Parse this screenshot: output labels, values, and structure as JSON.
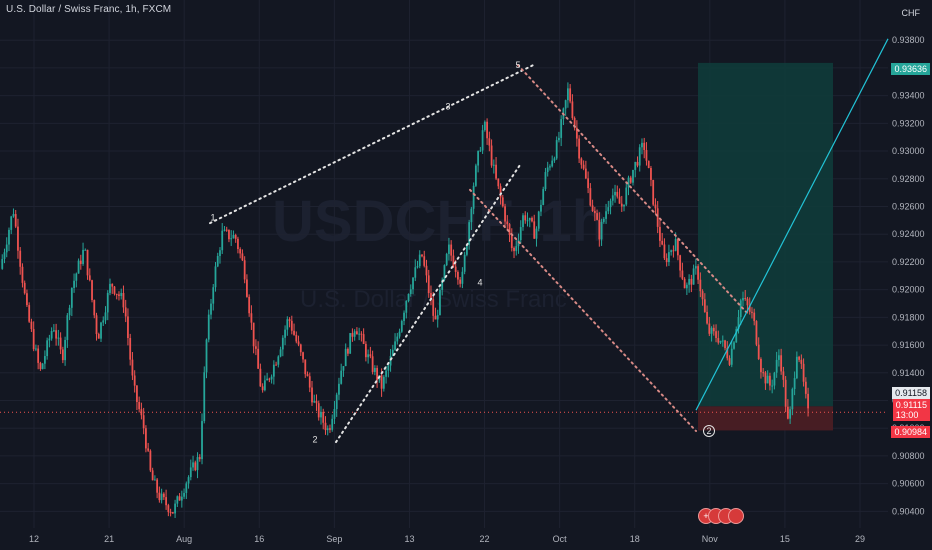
{
  "header": {
    "title": "U.S. Dollar / Swiss Franc, 1h, FXCM",
    "currency": "CHF"
  },
  "watermark": {
    "symbol": "USDCHF, 1h",
    "name": "U.S. Dollar / Swiss Franc"
  },
  "colors": {
    "background": "#131722",
    "up": "#26a69a",
    "down": "#ef5350",
    "grid": "#1e2230",
    "axis_text": "#b2b5be",
    "tp_zone": "#0f3b3a",
    "sl_zone": "#4a1e24",
    "projection": "#22c3d6",
    "annotation": "#e3e3e3",
    "corrective": "#d88a86"
  },
  "chart_data": {
    "type": "candlestick",
    "title": "U.S. Dollar / Swiss Franc, 1h, FXCM",
    "y_axis": {
      "unit": "CHF",
      "range": [
        0.9028,
        0.9409
      ],
      "position": "right",
      "ticks": [
        "0.93800",
        "0.93600",
        "0.93400",
        "0.93200",
        "0.93000",
        "0.92800",
        "0.92600",
        "0.92400",
        "0.92200",
        "0.92000",
        "0.91800",
        "0.91600",
        "0.91400",
        "0.91200",
        "0.91000",
        "0.90800",
        "0.90600",
        "0.90400"
      ]
    },
    "x_axis": {
      "ticks": [
        "12",
        "21",
        "Aug",
        "16",
        "Sep",
        "13",
        "22",
        "Oct",
        "18",
        "Nov",
        "15",
        "29"
      ]
    },
    "grid": true,
    "price_path": [
      {
        "t": 0.0,
        "p": 0.9215
      },
      {
        "t": 0.015,
        "p": 0.9258
      },
      {
        "t": 0.03,
        "p": 0.9185
      },
      {
        "t": 0.045,
        "p": 0.914
      },
      {
        "t": 0.06,
        "p": 0.9175
      },
      {
        "t": 0.07,
        "p": 0.915
      },
      {
        "t": 0.08,
        "p": 0.92
      },
      {
        "t": 0.095,
        "p": 0.923
      },
      {
        "t": 0.11,
        "p": 0.9165
      },
      {
        "t": 0.125,
        "p": 0.9205
      },
      {
        "t": 0.14,
        "p": 0.919
      },
      {
        "t": 0.15,
        "p": 0.913
      },
      {
        "t": 0.162,
        "p": 0.91
      },
      {
        "t": 0.17,
        "p": 0.9065
      },
      {
        "t": 0.18,
        "p": 0.905
      },
      {
        "t": 0.195,
        "p": 0.904
      },
      {
        "t": 0.21,
        "p": 0.9062
      },
      {
        "t": 0.225,
        "p": 0.908
      },
      {
        "t": 0.232,
        "p": 0.916
      },
      {
        "t": 0.24,
        "p": 0.9205
      },
      {
        "t": 0.25,
        "p": 0.924
      },
      {
        "t": 0.265,
        "p": 0.9238
      },
      {
        "t": 0.275,
        "p": 0.9215
      },
      {
        "t": 0.285,
        "p": 0.9165
      },
      {
        "t": 0.295,
        "p": 0.9125
      },
      {
        "t": 0.31,
        "p": 0.9148
      },
      {
        "t": 0.325,
        "p": 0.918
      },
      {
        "t": 0.34,
        "p": 0.915
      },
      {
        "t": 0.355,
        "p": 0.9115
      },
      {
        "t": 0.37,
        "p": 0.9098
      },
      {
        "t": 0.385,
        "p": 0.9145
      },
      {
        "t": 0.4,
        "p": 0.9175
      },
      {
        "t": 0.415,
        "p": 0.915
      },
      {
        "t": 0.43,
        "p": 0.913
      },
      {
        "t": 0.445,
        "p": 0.916
      },
      {
        "t": 0.46,
        "p": 0.92
      },
      {
        "t": 0.475,
        "p": 0.9225
      },
      {
        "t": 0.49,
        "p": 0.9175
      },
      {
        "t": 0.505,
        "p": 0.923
      },
      {
        "t": 0.52,
        "p": 0.9205
      },
      {
        "t": 0.533,
        "p": 0.9275
      },
      {
        "t": 0.545,
        "p": 0.932
      },
      {
        "t": 0.558,
        "p": 0.928
      },
      {
        "t": 0.568,
        "p": 0.9255
      },
      {
        "t": 0.578,
        "p": 0.9225
      },
      {
        "t": 0.59,
        "p": 0.9255
      },
      {
        "t": 0.603,
        "p": 0.924
      },
      {
        "t": 0.615,
        "p": 0.9285
      },
      {
        "t": 0.628,
        "p": 0.9305
      },
      {
        "t": 0.64,
        "p": 0.9345
      },
      {
        "t": 0.652,
        "p": 0.93
      },
      {
        "t": 0.663,
        "p": 0.927
      },
      {
        "t": 0.675,
        "p": 0.924
      },
      {
        "t": 0.688,
        "p": 0.927
      },
      {
        "t": 0.7,
        "p": 0.926
      },
      {
        "t": 0.712,
        "p": 0.9285
      },
      {
        "t": 0.725,
        "p": 0.9305
      },
      {
        "t": 0.737,
        "p": 0.926
      },
      {
        "t": 0.748,
        "p": 0.922
      },
      {
        "t": 0.76,
        "p": 0.9235
      },
      {
        "t": 0.772,
        "p": 0.92
      },
      {
        "t": 0.785,
        "p": 0.9215
      },
      {
        "t": 0.797,
        "p": 0.917
      },
      {
        "t": 0.81,
        "p": 0.9165
      },
      {
        "t": 0.822,
        "p": 0.915
      },
      {
        "t": 0.835,
        "p": 0.9195
      },
      {
        "t": 0.848,
        "p": 0.918
      },
      {
        "t": 0.858,
        "p": 0.914
      },
      {
        "t": 0.868,
        "p": 0.913
      },
      {
        "t": 0.878,
        "p": 0.9155
      },
      {
        "t": 0.888,
        "p": 0.91
      },
      {
        "t": 0.898,
        "p": 0.916
      },
      {
        "t": 0.91,
        "p": 0.911
      }
    ],
    "wave_labels": [
      {
        "label": "1",
        "price": 0.9252
      },
      {
        "label": "2",
        "price": 0.9092
      },
      {
        "label": "3",
        "price": 0.9332
      },
      {
        "label": "4",
        "price": 0.9205
      },
      {
        "label": "5",
        "price": 0.9362
      },
      {
        "label": "2",
        "price": 0.9098
      }
    ],
    "position": {
      "side": "long",
      "entry": 0.91158,
      "target": 0.93636,
      "stop": 0.90984,
      "last_price": 0.91115,
      "countdown": "13:00"
    },
    "projection": {
      "from": 0.9113,
      "to": 0.9381
    }
  },
  "price_tags": {
    "target": "0.93636",
    "last_close": "0.91158",
    "current": "0.91115",
    "countdown": "13:00",
    "stop": "0.90984"
  },
  "toolbar": {
    "items": [
      "plus-circle-icon",
      "circle-icon",
      "circle-icon",
      "circle-icon"
    ]
  }
}
